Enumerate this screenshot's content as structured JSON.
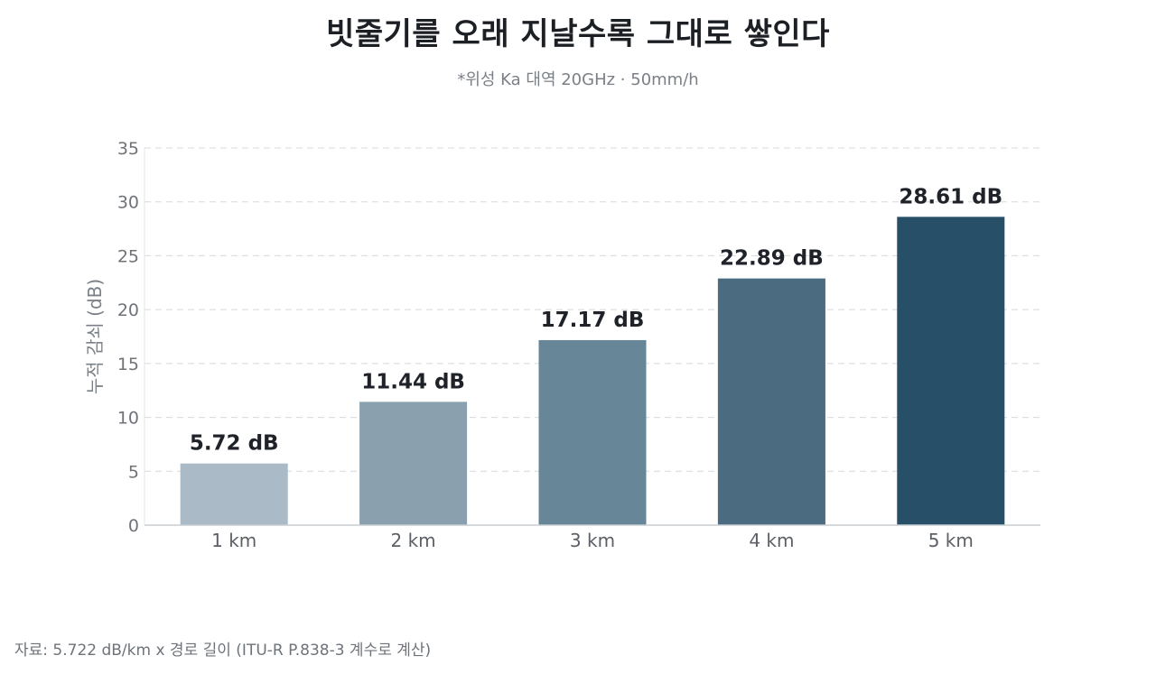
{
  "chart_data": {
    "type": "bar",
    "title": "빗줄기를 오래 지날수록 그대로 쌓인다",
    "subtitle": "*위성 Ka 대역 20GHz · 50mm/h",
    "ylabel": "누적 감쇠 (dB)",
    "xlabel": "",
    "categories": [
      "1 km",
      "2 km",
      "3 km",
      "4 km",
      "5 km"
    ],
    "values": [
      5.72,
      11.44,
      17.17,
      22.89,
      28.61
    ],
    "value_labels": [
      "5.72 dB",
      "11.44 dB",
      "17.17 dB",
      "22.89 dB",
      "28.61 dB"
    ],
    "bar_colors": [
      "#aabac6",
      "#8aa0ae",
      "#678698",
      "#4a6b80",
      "#274f68"
    ],
    "ylim": [
      0,
      35
    ],
    "yticks": [
      0,
      5,
      10,
      15,
      20,
      25,
      30,
      35
    ],
    "grid": true,
    "legend": "none"
  },
  "source": "자료: 5.722 dB/km x 경로 길이 (ITU-R P.838-3 계수로 계산)"
}
